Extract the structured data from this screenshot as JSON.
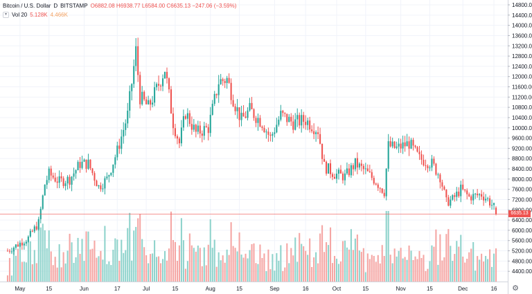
{
  "header": {
    "symbol": "Bitcoin / U.S. Dollar",
    "interval": "D",
    "exchange": "BITSTAMP",
    "ohlc": "O6882.08  H6938.77  L6584.00  C6635.13  −247.06 (−3.59%)"
  },
  "volume_legend": {
    "label": "Vol 20",
    "value1": "5.128K",
    "value2": "4.466K"
  },
  "last_price": "6635.13",
  "colors": {
    "up": "#26a69a",
    "down": "#ef5350",
    "vol_up": "#8fd3cc",
    "vol_down": "#f5a6a4"
  },
  "icons": {
    "settings": "gear-icon",
    "collapse": "chevron-down-icon"
  },
  "chart_data": {
    "type": "candlestick",
    "price_axis": {
      "range": [
        4000,
        14800
      ],
      "ticks": [
        "14800.00",
        "14400.00",
        "14000.00",
        "13600.00",
        "13200.00",
        "12800.00",
        "12400.00",
        "12000.00",
        "11600.00",
        "11200.00",
        "10800.00",
        "10400.00",
        "10000.00",
        "9600.00",
        "9200.00",
        "8800.00",
        "8400.00",
        "8000.00",
        "7600.00",
        "7200.00",
        "6800.00",
        "6400.00",
        "6000.00",
        "5600.00",
        "5200.00",
        "4800.00",
        "4400.00"
      ]
    },
    "time_axis": {
      "ticks": [
        "May",
        "15",
        "Jun",
        "17",
        "Jul",
        "15",
        "Aug",
        "15",
        "Sep",
        "16",
        "Oct",
        "15",
        "Nov",
        "15",
        "Dec",
        "16"
      ]
    },
    "close_path": [
      [
        "2019-04-25",
        5200
      ],
      [
        "2019-05-05",
        5700
      ],
      [
        "2019-05-10",
        6300
      ],
      [
        "2019-05-13",
        7800
      ],
      [
        "2019-05-15",
        8200
      ],
      [
        "2019-05-20",
        7900
      ],
      [
        "2019-05-25",
        8000
      ],
      [
        "2019-05-30",
        8600
      ],
      [
        "2019-06-03",
        8600
      ],
      [
        "2019-06-08",
        7700
      ],
      [
        "2019-06-12",
        8000
      ],
      [
        "2019-06-17",
        9100
      ],
      [
        "2019-06-22",
        10500
      ],
      [
        "2019-06-26",
        13000
      ],
      [
        "2019-06-28",
        11200
      ],
      [
        "2019-07-02",
        10800
      ],
      [
        "2019-07-06",
        11500
      ],
      [
        "2019-07-10",
        12300
      ],
      [
        "2019-07-14",
        10200
      ],
      [
        "2019-07-17",
        9400
      ],
      [
        "2019-07-20",
        10600
      ],
      [
        "2019-07-25",
        9800
      ],
      [
        "2019-07-31",
        10000
      ],
      [
        "2019-08-05",
        11800
      ],
      [
        "2019-08-09",
        11900
      ],
      [
        "2019-08-13",
        10900
      ],
      [
        "2019-08-16",
        10300
      ],
      [
        "2019-08-20",
        10700
      ],
      [
        "2019-08-26",
        10200
      ],
      [
        "2019-08-30",
        9600
      ],
      [
        "2019-09-04",
        10500
      ],
      [
        "2019-09-10",
        10200
      ],
      [
        "2019-09-16",
        10300
      ],
      [
        "2019-09-22",
        9900
      ],
      [
        "2019-09-25",
        8500
      ],
      [
        "2019-09-30",
        8200
      ],
      [
        "2019-10-05",
        8100
      ],
      [
        "2019-10-10",
        8600
      ],
      [
        "2019-10-15",
        8300
      ],
      [
        "2019-10-20",
        7900
      ],
      [
        "2019-10-24",
        7500
      ],
      [
        "2019-10-26",
        9300
      ],
      [
        "2019-10-30",
        9200
      ],
      [
        "2019-11-05",
        9400
      ],
      [
        "2019-11-10",
        8800
      ],
      [
        "2019-11-16",
        8600
      ],
      [
        "2019-11-20",
        8100
      ],
      [
        "2019-11-23",
        7100
      ],
      [
        "2019-11-26",
        7200
      ],
      [
        "2019-11-30",
        7600
      ],
      [
        "2019-12-04",
        7300
      ],
      [
        "2019-12-10",
        7400
      ],
      [
        "2019-12-13",
        7200
      ],
      [
        "2019-12-16",
        6900
      ],
      [
        "2019-12-17",
        6635
      ]
    ]
  }
}
